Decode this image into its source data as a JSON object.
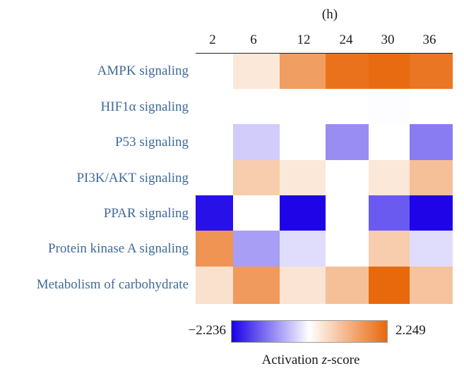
{
  "chart_data": {
    "type": "heatmap",
    "unit_label": "(h)",
    "columns": [
      "2",
      "6",
      "12",
      "24",
      "30",
      "36"
    ],
    "rows": [
      "AMPK signaling",
      "HIF1α signaling",
      "P53 signaling",
      "PI3K/AKT signaling",
      "PPAR signaling",
      "Protein kinase A signaling",
      "Metabolism of carbohydrate"
    ],
    "values": [
      [
        0.0,
        0.35,
        1.45,
        2.1,
        2.2,
        2.05
      ],
      [
        0.0,
        0.0,
        0.0,
        0.0,
        -0.02,
        0.0
      ],
      [
        0.0,
        -0.45,
        0.0,
        -1.0,
        0.0,
        -1.15
      ],
      [
        0.0,
        0.75,
        0.35,
        0.0,
        0.35,
        0.95
      ],
      [
        -2.1,
        0.0,
        -2.2,
        0.0,
        -1.45,
        -2.2
      ],
      [
        1.6,
        -0.85,
        -0.3,
        0.0,
        0.75,
        -0.3
      ],
      [
        0.45,
        1.5,
        0.4,
        0.95,
        2.25,
        0.9
      ]
    ],
    "missing": [
      [
        4,
        3
      ],
      [
        5,
        3
      ]
    ],
    "scale_min": -2.236,
    "scale_max": 2.249,
    "scale_min_label": "−2.236",
    "scale_max_label": "2.249",
    "legend_title": "Activation z-score",
    "colors": {
      "low": "#1a00e6",
      "mid": "#ffffff",
      "high": "#e8680c"
    }
  }
}
